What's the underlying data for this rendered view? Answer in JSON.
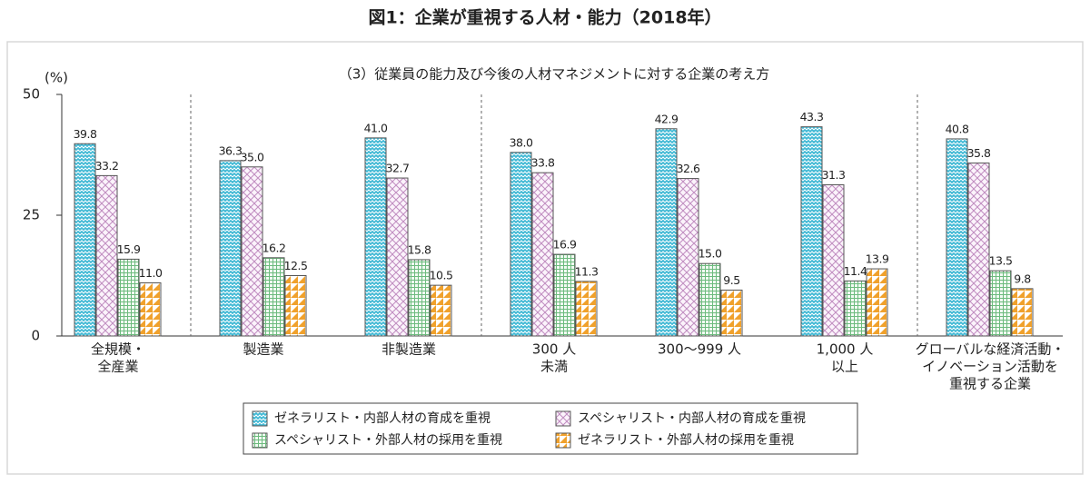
{
  "chart_data": {
    "type": "bar",
    "title": "図1：企業が重視する人材・能力（2018年）",
    "subtitle": "（3）従業員の能力及び今後の人材マネジメントに対する企業の考え方",
    "y_label": "(%)",
    "categories": [
      [
        "全規模・",
        "全産業"
      ],
      [
        "製造業"
      ],
      [
        "非製造業"
      ],
      [
        "300 人",
        "未満"
      ],
      [
        "300～999 人"
      ],
      [
        "1,000 人",
        "以上"
      ],
      [
        "グローバルな経済活動・",
        "イノベーション活動を",
        "重視する企業"
      ]
    ],
    "series": [
      {
        "name": "ゼネラリスト・内部人材の育成を重視",
        "color": "#3fb8d4",
        "pattern": "zigzag",
        "values": [
          39.8,
          36.3,
          41.0,
          38.0,
          42.9,
          43.3,
          40.8
        ],
        "value_labels": [
          "39.8",
          "36.3",
          "41.0",
          "38.0",
          "42.9",
          "43.3",
          "40.8"
        ]
      },
      {
        "name": "スペシャリスト・内部人材の育成を重視",
        "color": "#c08cc0",
        "pattern": "crosshatch",
        "values": [
          33.2,
          35.0,
          32.7,
          33.8,
          32.6,
          31.3,
          35.8
        ],
        "value_labels": [
          "33.2",
          "35.0",
          "32.7",
          "33.8",
          "32.6",
          "31.3",
          "35.8"
        ]
      },
      {
        "name": "スペシャリスト・外部人材の採用を重視",
        "color": "#6dbb7e",
        "pattern": "grid",
        "values": [
          15.9,
          16.2,
          15.8,
          16.9,
          15.0,
          11.4,
          13.5
        ],
        "value_labels": [
          "15.9",
          "16.2",
          "15.8",
          "16.9",
          "15.0",
          "11.4",
          "13.5"
        ]
      },
      {
        "name": "ゼネラリスト・外部人材の採用を重視",
        "color": "#f0a12c",
        "pattern": "triangles",
        "values": [
          11.0,
          12.5,
          10.5,
          11.3,
          9.5,
          13.9,
          9.8
        ],
        "value_labels": [
          "11.0",
          "12.5",
          "10.5",
          "11.3",
          "9.5",
          "13.9",
          "9.8"
        ]
      }
    ],
    "ylim": [
      0,
      50
    ],
    "yticks": [
      0,
      25,
      50
    ],
    "grid": false
  }
}
